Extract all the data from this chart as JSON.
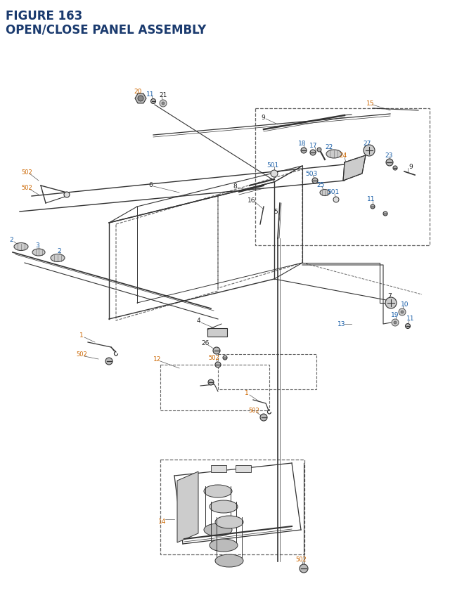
{
  "title_line1": "FIGURE 163",
  "title_line2": "OPEN/CLOSE PANEL ASSEMBLY",
  "title_color": "#1a3a6e",
  "title_fontsize": 12,
  "bg_color": "#ffffff",
  "line_color": "#333333",
  "dash_color": "#666666",
  "orange": "#cc6600",
  "blue": "#1a5fa8",
  "black": "#222222"
}
